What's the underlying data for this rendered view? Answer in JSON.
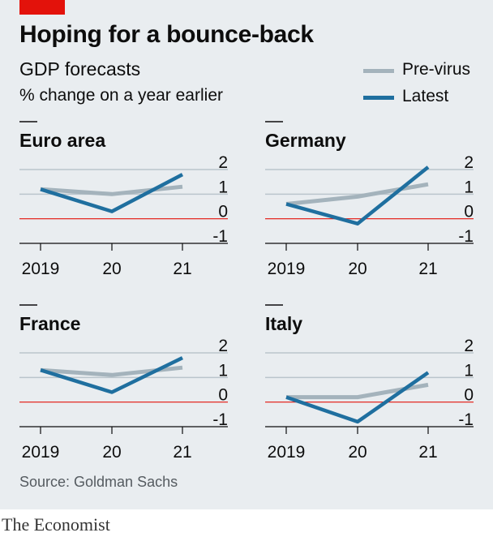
{
  "header": {
    "title": "Hoping for a bounce-back",
    "subtitle": "GDP forecasts",
    "unit": "% change on a year earlier"
  },
  "legend": [
    {
      "label": "Pre-virus",
      "color": "#a4b3bc"
    },
    {
      "label": "Latest",
      "color": "#1f6f9f"
    }
  ],
  "footer": {
    "source": "Source: Goldman Sachs",
    "brand": "The Economist"
  },
  "colors": {
    "background": "#e9edf0",
    "gridline": "#bac5cc",
    "zero_line": "#e3120b",
    "accent_tab": "#e3120b"
  },
  "chart_data": [
    {
      "type": "line",
      "title": "Euro area",
      "x": [
        "2019",
        "20",
        "21"
      ],
      "ylim": [
        -1,
        2
      ],
      "yticks": [
        "2",
        "1",
        "0",
        "-1"
      ],
      "series": [
        {
          "name": "Pre-virus",
          "values": [
            1.2,
            1.0,
            1.3
          ]
        },
        {
          "name": "Latest",
          "values": [
            1.2,
            0.3,
            1.8
          ]
        }
      ]
    },
    {
      "type": "line",
      "title": "Germany",
      "x": [
        "2019",
        "20",
        "21"
      ],
      "ylim": [
        -1,
        2
      ],
      "yticks": [
        "2",
        "1",
        "0",
        "-1"
      ],
      "series": [
        {
          "name": "Pre-virus",
          "values": [
            0.6,
            0.9,
            1.4
          ]
        },
        {
          "name": "Latest",
          "values": [
            0.6,
            -0.2,
            2.1
          ]
        }
      ]
    },
    {
      "type": "line",
      "title": "France",
      "x": [
        "2019",
        "20",
        "21"
      ],
      "ylim": [
        -1,
        2
      ],
      "yticks": [
        "2",
        "1",
        "0",
        "-1"
      ],
      "series": [
        {
          "name": "Pre-virus",
          "values": [
            1.3,
            1.1,
            1.4
          ]
        },
        {
          "name": "Latest",
          "values": [
            1.3,
            0.4,
            1.8
          ]
        }
      ]
    },
    {
      "type": "line",
      "title": "Italy",
      "x": [
        "2019",
        "20",
        "21"
      ],
      "ylim": [
        -1,
        2
      ],
      "yticks": [
        "2",
        "1",
        "0",
        "-1"
      ],
      "series": [
        {
          "name": "Pre-virus",
          "values": [
            0.2,
            0.2,
            0.7
          ]
        },
        {
          "name": "Latest",
          "values": [
            0.2,
            -0.8,
            1.2
          ]
        }
      ]
    }
  ]
}
